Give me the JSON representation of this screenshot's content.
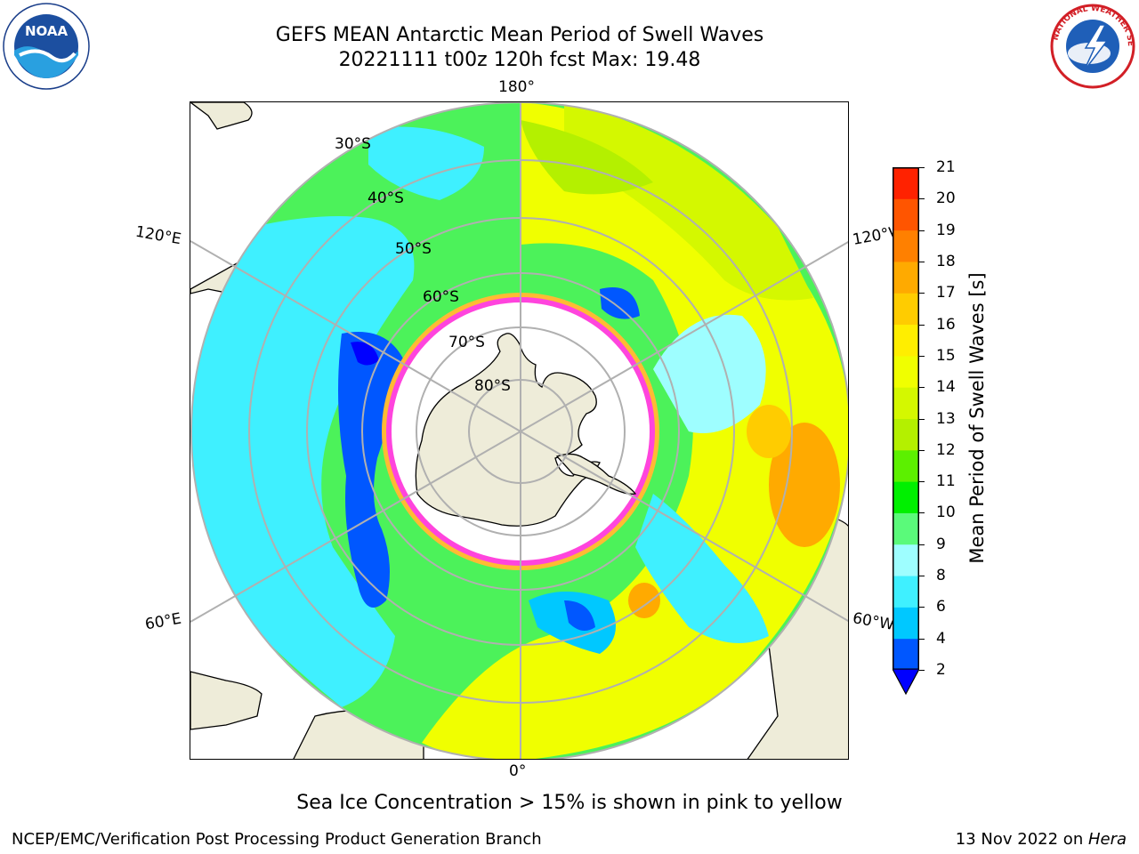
{
  "title_line1": "GEFS MEAN Antarctic Mean Period of Swell Waves",
  "title_line2": "20221111 t00z 120h fcst   Max: 19.48",
  "meridian_labels": {
    "top": "180°",
    "bottom": "0°",
    "left_upper": "120°E",
    "right_upper": "120°W",
    "left_lower": "60°E",
    "right_lower": "60°W"
  },
  "latitude_labels": [
    "30°S",
    "40°S",
    "50°S",
    "60°S",
    "70°S",
    "80°S"
  ],
  "colorbar": {
    "label": "Mean Period of Swell Waves [s]",
    "ticks": [
      "2",
      "4",
      "6",
      "8",
      "9",
      "10",
      "11",
      "12",
      "13",
      "14",
      "15",
      "16",
      "17",
      "18",
      "19",
      "20",
      "21"
    ],
    "colors": [
      "#0057ff",
      "#00c8ff",
      "#3ff0ff",
      "#9efeff",
      "#5afa7a",
      "#00f000",
      "#5cf000",
      "#b4f000",
      "#d4f800",
      "#f0ff00",
      "#ffee00",
      "#ffcc00",
      "#ffaa00",
      "#ff8000",
      "#ff5500",
      "#ff2200"
    ],
    "under_color": "#0000ff"
  },
  "caption": "Sea Ice Concentration > 15% is shown in pink to yellow",
  "footer_left": "NCEP/EMC/Verification Post Processing Product Generation Branch",
  "footer_right_prefix": "13 Nov 2022 on ",
  "footer_right_machine": "Hera",
  "logos": {
    "left": "noaa-logo",
    "right": "nws-logo"
  },
  "map_colors": {
    "land": "#eeecd9",
    "ice_edge_inner": "#ff44dd",
    "ice_edge_outer": "#ffbb33",
    "graticule": "#b0b0b0"
  }
}
